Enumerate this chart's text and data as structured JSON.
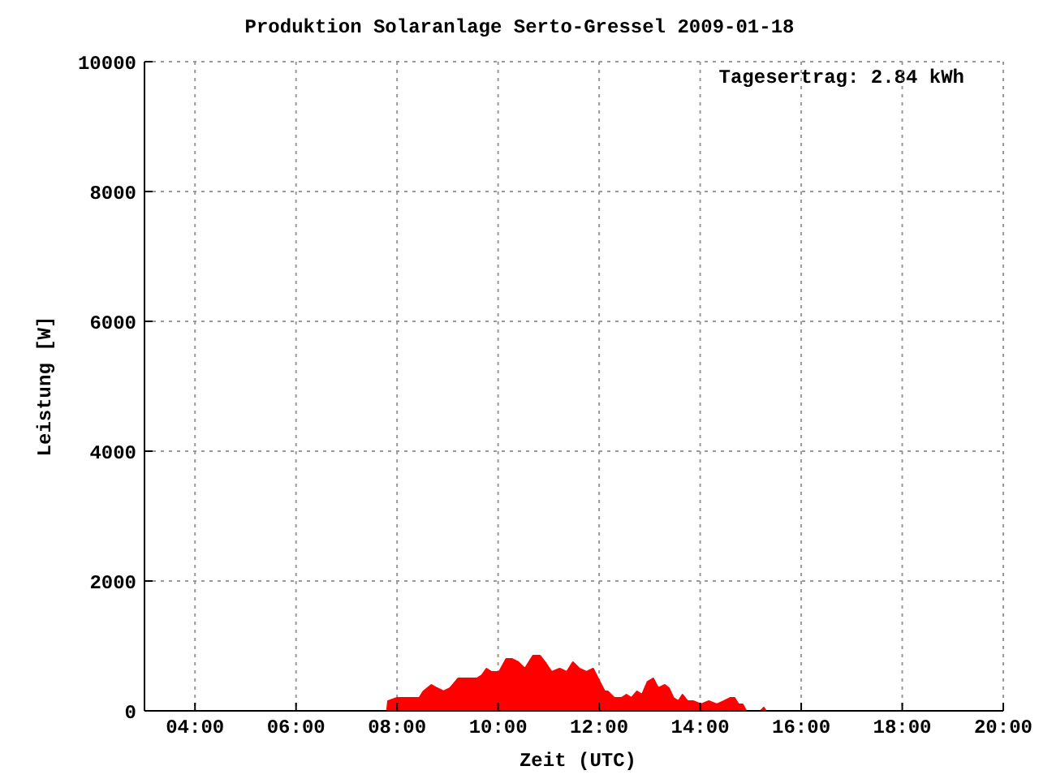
{
  "chart_data": {
    "type": "area",
    "title": "Produktion Solaranlage Serto-Gressel 2009-01-18",
    "xlabel": "Zeit (UTC)",
    "ylabel": "Leistung [W]",
    "annotations": [
      "Tagesertrag: 2.84 kWh"
    ],
    "x": [
      7.8,
      7.82,
      8.0,
      8.1,
      8.4,
      8.44,
      8.52,
      8.68,
      8.79,
      8.92,
      9.05,
      9.21,
      9.37,
      9.58,
      9.68,
      9.77,
      9.87,
      10.02,
      10.16,
      10.27,
      10.4,
      10.53,
      10.69,
      10.83,
      10.93,
      11.06,
      11.22,
      11.36,
      11.48,
      11.61,
      11.75,
      11.88,
      12.01,
      12.11,
      12.17,
      12.3,
      12.44,
      12.54,
      12.64,
      12.75,
      12.85,
      12.96,
      13.07,
      13.17,
      13.3,
      13.38,
      13.47,
      13.57,
      13.65,
      13.75,
      13.86,
      14.02,
      14.17,
      14.33,
      14.47,
      14.6,
      14.68,
      14.76,
      14.84,
      14.91,
      15.2,
      15.26,
      15.3
    ],
    "series": [
      {
        "color": "#ff0000",
        "values": [
          0,
          150,
          200,
          200,
          200,
          200,
          300,
          400,
          350,
          300,
          350,
          500,
          500,
          500,
          550,
          650,
          600,
          600,
          800,
          800,
          750,
          650,
          850,
          850,
          750,
          600,
          650,
          600,
          750,
          650,
          600,
          650,
          450,
          300,
          300,
          200,
          200,
          250,
          200,
          300,
          250,
          450,
          500,
          350,
          400,
          350,
          200,
          150,
          250,
          150,
          150,
          100,
          150,
          100,
          150,
          200,
          200,
          100,
          100,
          0,
          0,
          50,
          0
        ]
      }
    ],
    "xlim": [
      3,
      20
    ],
    "xticks": [
      {
        "value": 4,
        "label": "04:00"
      },
      {
        "value": 6,
        "label": "06:00"
      },
      {
        "value": 8,
        "label": "08:00"
      },
      {
        "value": 10,
        "label": "10:00"
      },
      {
        "value": 12,
        "label": "12:00"
      },
      {
        "value": 14,
        "label": "14:00"
      },
      {
        "value": 16,
        "label": "16:00"
      },
      {
        "value": 18,
        "label": "18:00"
      },
      {
        "value": 20,
        "label": "20:00"
      }
    ],
    "ylim": [
      0,
      10000
    ],
    "yticks": [
      0,
      2000,
      4000,
      6000,
      8000,
      10000
    ],
    "grid": true,
    "line_style": "solid"
  }
}
